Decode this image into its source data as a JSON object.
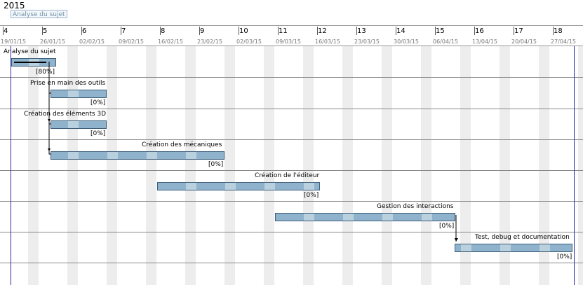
{
  "header": {
    "year": "2015",
    "tooltip": "Analyse du sujet"
  },
  "timeline": {
    "weeks": [
      "4",
      "5",
      "6",
      "7",
      "8",
      "9",
      "10",
      "11",
      "12",
      "13",
      "14",
      "15",
      "16",
      "17",
      "18"
    ],
    "dates": [
      "19/01/15",
      "26/01/15",
      "02/02/15",
      "09/02/15",
      "16/02/15",
      "23/02/15",
      "02/03/15",
      "09/03/15",
      "16/03/15",
      "23/03/15",
      "30/03/15",
      "06/04/15",
      "13/04/15",
      "20/04/15",
      "27/04/15"
    ]
  },
  "tasks": [
    {
      "name": "Analyse du sujet",
      "percent": "[80%]",
      "progress": 0.8
    },
    {
      "name": "Prise en main des outils",
      "percent": "[0%]",
      "progress": 0
    },
    {
      "name": "Création des éléments 3D",
      "percent": "[0%]",
      "progress": 0
    },
    {
      "name": "Création des mécaniques",
      "percent": "[0%]",
      "progress": 0
    },
    {
      "name": "Création de l'éditeur",
      "percent": "[0%]",
      "progress": 0
    },
    {
      "name": "Gestion des interactions",
      "percent": "[0%]",
      "progress": 0
    },
    {
      "name": "Test, debug et documentation",
      "percent": "[0%]",
      "progress": 0
    }
  ],
  "colors": {
    "bar": "#8fb3cc",
    "bar_border": "#3f5f7a",
    "today_line": "#2f2fa6"
  }
}
